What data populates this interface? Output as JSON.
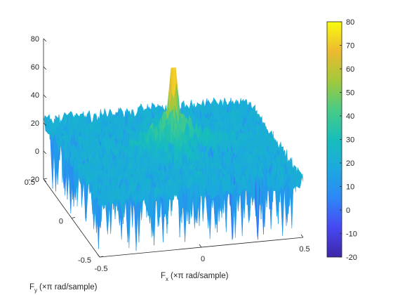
{
  "chart_data": [
    {
      "type": "surface",
      "title": "",
      "xlabel": {
        "main": "F",
        "sub": "x",
        "rest": "(×π rad/sample)"
      },
      "ylabel": {
        "main": "F",
        "sub": "y",
        "rest": "(×π rad/sample)"
      },
      "zlabel": "",
      "xlim": [
        -0.5,
        0.5
      ],
      "ylim": [
        -0.5,
        0.5
      ],
      "zlim": [
        -20,
        80
      ],
      "x_ticks": [
        "-0.5",
        "0",
        "0.5"
      ],
      "y_ticks": [
        "-0.5",
        "0",
        "0.5"
      ],
      "z_ticks": [
        "-20",
        "0",
        "20",
        "40",
        "60",
        "80"
      ],
      "description_values": {
        "peak": {
          "x": 0,
          "y": 0,
          "z": 78
        },
        "background_level": 20,
        "ridge_level": 32,
        "noise_min": -20
      },
      "grid": false,
      "colormap": "parula"
    },
    {
      "type": "colorbar",
      "range": [
        -20,
        80
      ],
      "ticks": [
        "80",
        "70",
        "60",
        "50",
        "40",
        "30",
        "20",
        "10",
        "0",
        "-10",
        "-20"
      ],
      "colormap": "parula"
    }
  ]
}
